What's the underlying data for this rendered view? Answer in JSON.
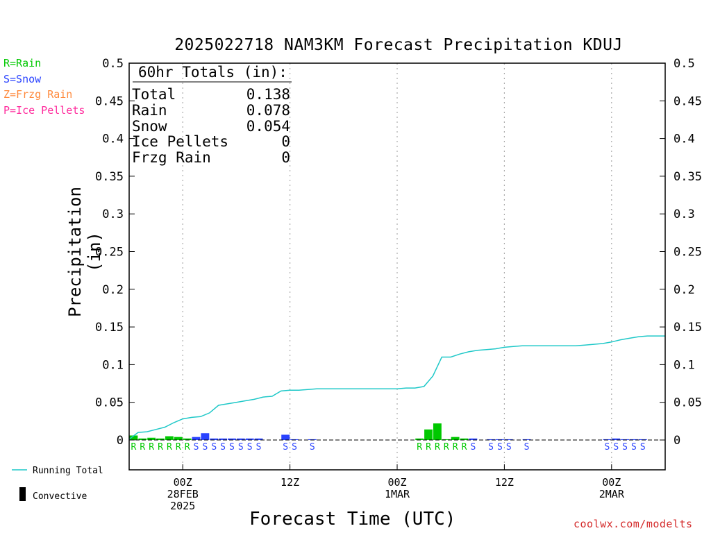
{
  "title": "2025022718 NAM3KM Forecast Precipitation KDUJ",
  "xlabel": "Forecast Time (UTC)",
  "ylabel": "Precipitation (in)",
  "credit": "coolwx.com/modelts",
  "type_legend": [
    {
      "text": "R=Rain",
      "color": "#00c800"
    },
    {
      "text": "S=Snow",
      "color": "#2a43ff"
    },
    {
      "text": "Z=Frzg Rain",
      "color": "#ff8a3d"
    },
    {
      "text": "P=Ice Pellets",
      "color": "#ff2a9c"
    }
  ],
  "bottom_legend": {
    "running_total": "Running Total",
    "convective": "Convective"
  },
  "totals": {
    "header": "60hr Totals (in):",
    "rows": [
      {
        "label": "Total",
        "value": "0.138"
      },
      {
        "label": "Rain",
        "value": "0.078"
      },
      {
        "label": "Snow",
        "value": "0.054"
      },
      {
        "label": "Ice Pellets",
        "value": "0"
      },
      {
        "label": "Frzg Rain",
        "value": "0"
      }
    ]
  },
  "colors": {
    "rain": "#00c800",
    "snow": "#2a43ff",
    "running_total": "#1ec8c8",
    "credit": "#d42a2a"
  },
  "chart_data": {
    "type": "bar",
    "title": "2025022718 NAM3KM Forecast Precipitation KDUJ",
    "xlabel": "Forecast Time (UTC)",
    "ylabel": "Precipitation (in)",
    "ylim": [
      0,
      0.5
    ],
    "yticks": [
      0,
      0.05,
      0.1,
      0.15,
      0.2,
      0.25,
      0.3,
      0.35,
      0.4,
      0.45,
      0.5
    ],
    "ytick_labels": [
      "0",
      "0.05",
      "0.1",
      "0.15",
      "0.2",
      "0.25",
      "0.3",
      "0.35",
      "0.4",
      "0.45",
      "0.5"
    ],
    "xlim_forecast_hours": [
      0,
      60
    ],
    "x_ticks": [
      {
        "hour": 6,
        "lines": [
          "00Z",
          "28FEB",
          "2025"
        ]
      },
      {
        "hour": 18,
        "lines": [
          "12Z"
        ]
      },
      {
        "hour": 30,
        "lines": [
          "00Z",
          "1MAR"
        ]
      },
      {
        "hour": 42,
        "lines": [
          "12Z"
        ]
      },
      {
        "hour": 54,
        "lines": [
          "00Z",
          "2MAR"
        ]
      }
    ],
    "grid": "vertical dotted at 00Z/12Z",
    "bars": [
      {
        "hour": 1,
        "value": 0.006,
        "type": "R"
      },
      {
        "hour": 2,
        "value": 0.002,
        "type": "R"
      },
      {
        "hour": 3,
        "value": 0.003,
        "type": "R"
      },
      {
        "hour": 4,
        "value": 0.002,
        "type": "R"
      },
      {
        "hour": 5,
        "value": 0.005,
        "type": "R"
      },
      {
        "hour": 6,
        "value": 0.004,
        "type": "R"
      },
      {
        "hour": 7,
        "value": 0.002,
        "type": "R"
      },
      {
        "hour": 8,
        "value": 0.004,
        "type": "S"
      },
      {
        "hour": 9,
        "value": 0.009,
        "type": "S"
      },
      {
        "hour": 10,
        "value": 0.002,
        "type": "S"
      },
      {
        "hour": 11,
        "value": 0.002,
        "type": "S"
      },
      {
        "hour": 12,
        "value": 0.002,
        "type": "S"
      },
      {
        "hour": 13,
        "value": 0.002,
        "type": "S"
      },
      {
        "hour": 14,
        "value": 0.002,
        "type": "S"
      },
      {
        "hour": 15,
        "value": 0.002,
        "type": "S"
      },
      {
        "hour": 18,
        "value": 0.007,
        "type": "S"
      },
      {
        "hour": 19,
        "value": 0.001,
        "type": "S"
      },
      {
        "hour": 21,
        "value": 0.001,
        "type": "S"
      },
      {
        "hour": 33,
        "value": 0.002,
        "type": "R"
      },
      {
        "hour": 34,
        "value": 0.014,
        "type": "R"
      },
      {
        "hour": 35,
        "value": 0.022,
        "type": "R"
      },
      {
        "hour": 36,
        "value": 0.001,
        "type": "R"
      },
      {
        "hour": 37,
        "value": 0.004,
        "type": "R"
      },
      {
        "hour": 38,
        "value": 0.002,
        "type": "R"
      },
      {
        "hour": 39,
        "value": 0.002,
        "type": "S"
      },
      {
        "hour": 41,
        "value": 0.001,
        "type": "S"
      },
      {
        "hour": 42,
        "value": 0.001,
        "type": "S"
      },
      {
        "hour": 43,
        "value": 0.001,
        "type": "S"
      },
      {
        "hour": 45,
        "value": 0.001,
        "type": "S"
      },
      {
        "hour": 54,
        "value": 0.001,
        "type": "S"
      },
      {
        "hour": 55,
        "value": 0.002,
        "type": "S"
      },
      {
        "hour": 56,
        "value": 0.001,
        "type": "S"
      },
      {
        "hour": 57,
        "value": 0.001,
        "type": "S"
      },
      {
        "hour": 58,
        "value": 0.001,
        "type": "S"
      }
    ],
    "series": [
      {
        "name": "Running Total",
        "x": [
          0,
          1,
          2,
          3,
          4,
          5,
          6,
          7,
          8,
          9,
          10,
          11,
          12,
          13,
          14,
          15,
          16,
          17,
          18,
          19,
          20,
          21,
          22,
          23,
          24,
          25,
          26,
          27,
          28,
          29,
          30,
          31,
          32,
          33,
          34,
          35,
          36,
          37,
          38,
          39,
          40,
          41,
          42,
          43,
          44,
          45,
          46,
          47,
          48,
          49,
          50,
          51,
          52,
          53,
          54,
          55,
          56,
          57,
          58,
          59,
          60
        ],
        "values": [
          0.001,
          0.01,
          0.011,
          0.014,
          0.017,
          0.023,
          0.028,
          0.03,
          0.031,
          0.036,
          0.046,
          0.048,
          0.05,
          0.052,
          0.054,
          0.057,
          0.058,
          0.065,
          0.066,
          0.066,
          0.067,
          0.068,
          0.068,
          0.068,
          0.068,
          0.068,
          0.068,
          0.068,
          0.068,
          0.068,
          0.068,
          0.069,
          0.069,
          0.071,
          0.085,
          0.11,
          0.11,
          0.114,
          0.117,
          0.119,
          0.12,
          0.121,
          0.123,
          0.124,
          0.125,
          0.125,
          0.125,
          0.125,
          0.125,
          0.125,
          0.125,
          0.126,
          0.127,
          0.128,
          0.13,
          0.133,
          0.135,
          0.137,
          0.138,
          0.138,
          0.138
        ]
      }
    ]
  }
}
